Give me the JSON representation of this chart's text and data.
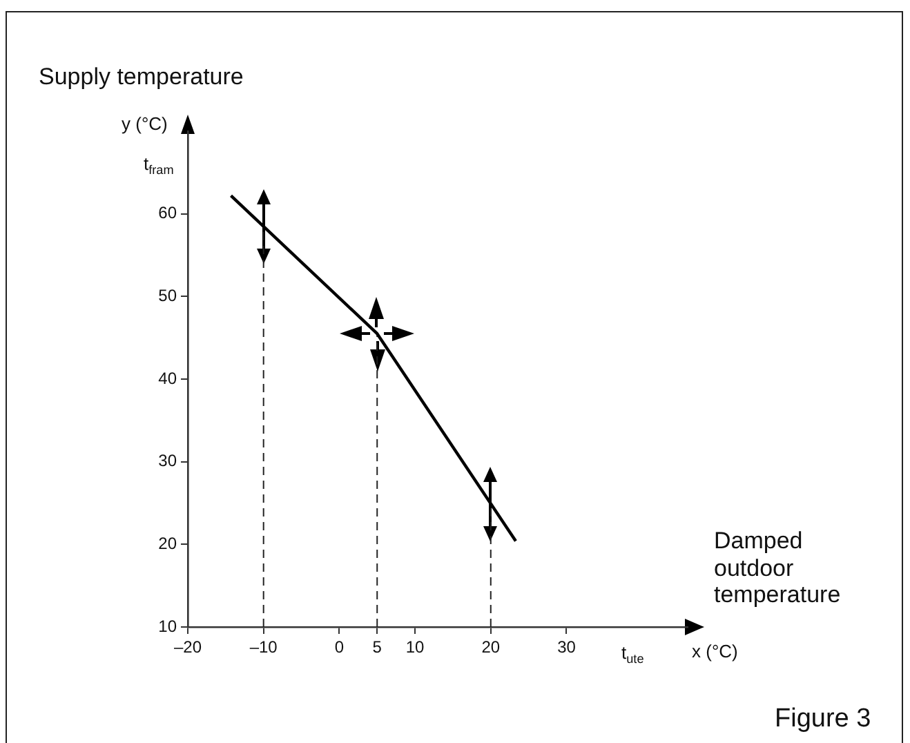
{
  "chart_data": {
    "type": "line",
    "ylabel": "Supply temperature",
    "xlabel": "Damped outdoor temperature",
    "x": [
      -14.3,
      5,
      23.3
    ],
    "series": [
      {
        "color": "#000000",
        "values": [
          62.2,
          45.5,
          20.4
        ]
      }
    ],
    "xlim": [
      -20,
      46
    ],
    "ylim": [
      10,
      70
    ],
    "xticks": [
      {
        "value": -20,
        "label": "–20"
      },
      {
        "value": -10,
        "label": "–10"
      },
      0,
      5,
      10,
      20,
      30
    ],
    "yticks": [
      10,
      20,
      30,
      40,
      50,
      60
    ],
    "grid": false,
    "legend": false,
    "marker": "none",
    "line_style": "solid",
    "ref_lines": [
      {
        "axis": "x",
        "value": -10,
        "line_style": "dashed"
      },
      {
        "axis": "x",
        "value": 5,
        "line_style": "dashed"
      },
      {
        "axis": "x",
        "value": 20,
        "line_style": "dashed"
      }
    ],
    "annotations": [
      "y (°C)",
      "t$_{fram}$",
      "t$_{ute}$",
      "x (°C)",
      "Figure 3"
    ]
  }
}
